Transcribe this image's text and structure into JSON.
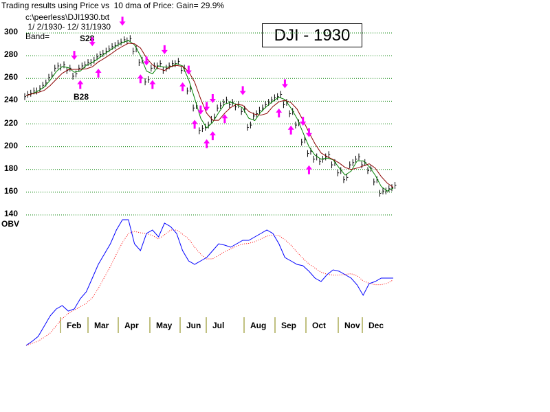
{
  "chart_data": {
    "type": "line",
    "title": "Trading results using Price vs  10 dma of Price: Gain= 29.9%",
    "file": "c:\\peerless\\DJI1930.txt",
    "date_range": " 1/ 2/1930- 12/ 31/1930",
    "band_label": "Band=",
    "legend": "DJI - 1930",
    "signal_labels": {
      "sell": "S28",
      "buy": "B28"
    },
    "obv_label": "OBV",
    "ylim": [
      140,
      300
    ],
    "yticks": [
      "300",
      "280",
      "260",
      "240",
      "220",
      "200",
      "180",
      "160",
      "140"
    ],
    "ytick_values": [
      300,
      280,
      260,
      240,
      220,
      200,
      180,
      160,
      140
    ],
    "grid": true,
    "months": [
      "Feb",
      "Mar",
      "Apr",
      "May",
      "Jun",
      "Jul",
      "Aug",
      "Sep",
      "Oct",
      "Nov",
      "Dec"
    ],
    "price_weekly": [
      245,
      248,
      250,
      255,
      262,
      270,
      271,
      268,
      263,
      270,
      273,
      275,
      280,
      283,
      287,
      290,
      293,
      294,
      285,
      275,
      258,
      270,
      272,
      268,
      272,
      274,
      268,
      250,
      235,
      215,
      218,
      225,
      235,
      240,
      238,
      236,
      232,
      218,
      228,
      233,
      238,
      242,
      245,
      238,
      230,
      220,
      205,
      195,
      190,
      188,
      192,
      185,
      178,
      172,
      185,
      190,
      185,
      180,
      170,
      160,
      162,
      165
    ],
    "obv_weekly": [
      2,
      8,
      15,
      30,
      45,
      55,
      60,
      52,
      55,
      70,
      80,
      100,
      120,
      135,
      150,
      170,
      185,
      185,
      150,
      140,
      165,
      170,
      160,
      180,
      175,
      165,
      140,
      125,
      120,
      125,
      130,
      140,
      150,
      148,
      145,
      150,
      155,
      155,
      160,
      165,
      170,
      165,
      150,
      130,
      125,
      120,
      118,
      110,
      100,
      95,
      105,
      112,
      110,
      105,
      100,
      90,
      75,
      92,
      95,
      100,
      100,
      100
    ],
    "sell_arrows_week": [
      8,
      11,
      16,
      20,
      23,
      27,
      29,
      30,
      31,
      36,
      43,
      46,
      47
    ],
    "buy_arrows_week": [
      9,
      12,
      19,
      21,
      26,
      28,
      30,
      31,
      33,
      42,
      44,
      47
    ],
    "colors": {
      "price": "#000000",
      "short_ma": "#008000",
      "long_ma": "#8b0000",
      "obv": "#0000ff",
      "obv_ma": "#ff0000",
      "arrows": "#ff00ff",
      "grid": "#008000",
      "month_ticks": "#808000"
    }
  }
}
